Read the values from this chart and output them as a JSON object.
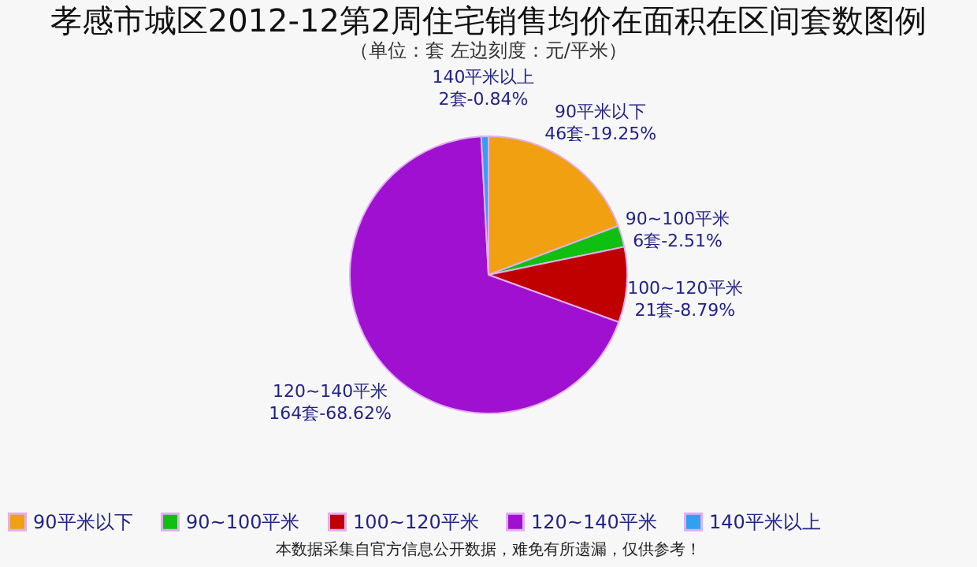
{
  "chart_data": {
    "type": "pie",
    "title": "孝感市城区2012-12第2周住宅销售均价在面积在区间套数图例",
    "subtitle": "（单位：套 左边刻度：元/平米）",
    "categories": [
      "90平米以下",
      "90~100平米",
      "100~120平米",
      "120~140平米",
      "140平米以上"
    ],
    "values": [
      46,
      6,
      21,
      164,
      2
    ],
    "value_labels": [
      "46套-19.25%",
      "6套-2.51%",
      "21套-8.79%",
      "164套-68.62%",
      "2套-0.84%"
    ],
    "colors": [
      "#f0a010",
      "#10c010",
      "#c00000",
      "#a010d0",
      "#30a0f0"
    ],
    "legend": "bottom",
    "annotations": [
      "本数据采集自官方信息公开数据，难免有所遗漏，仅供参考！"
    ]
  }
}
